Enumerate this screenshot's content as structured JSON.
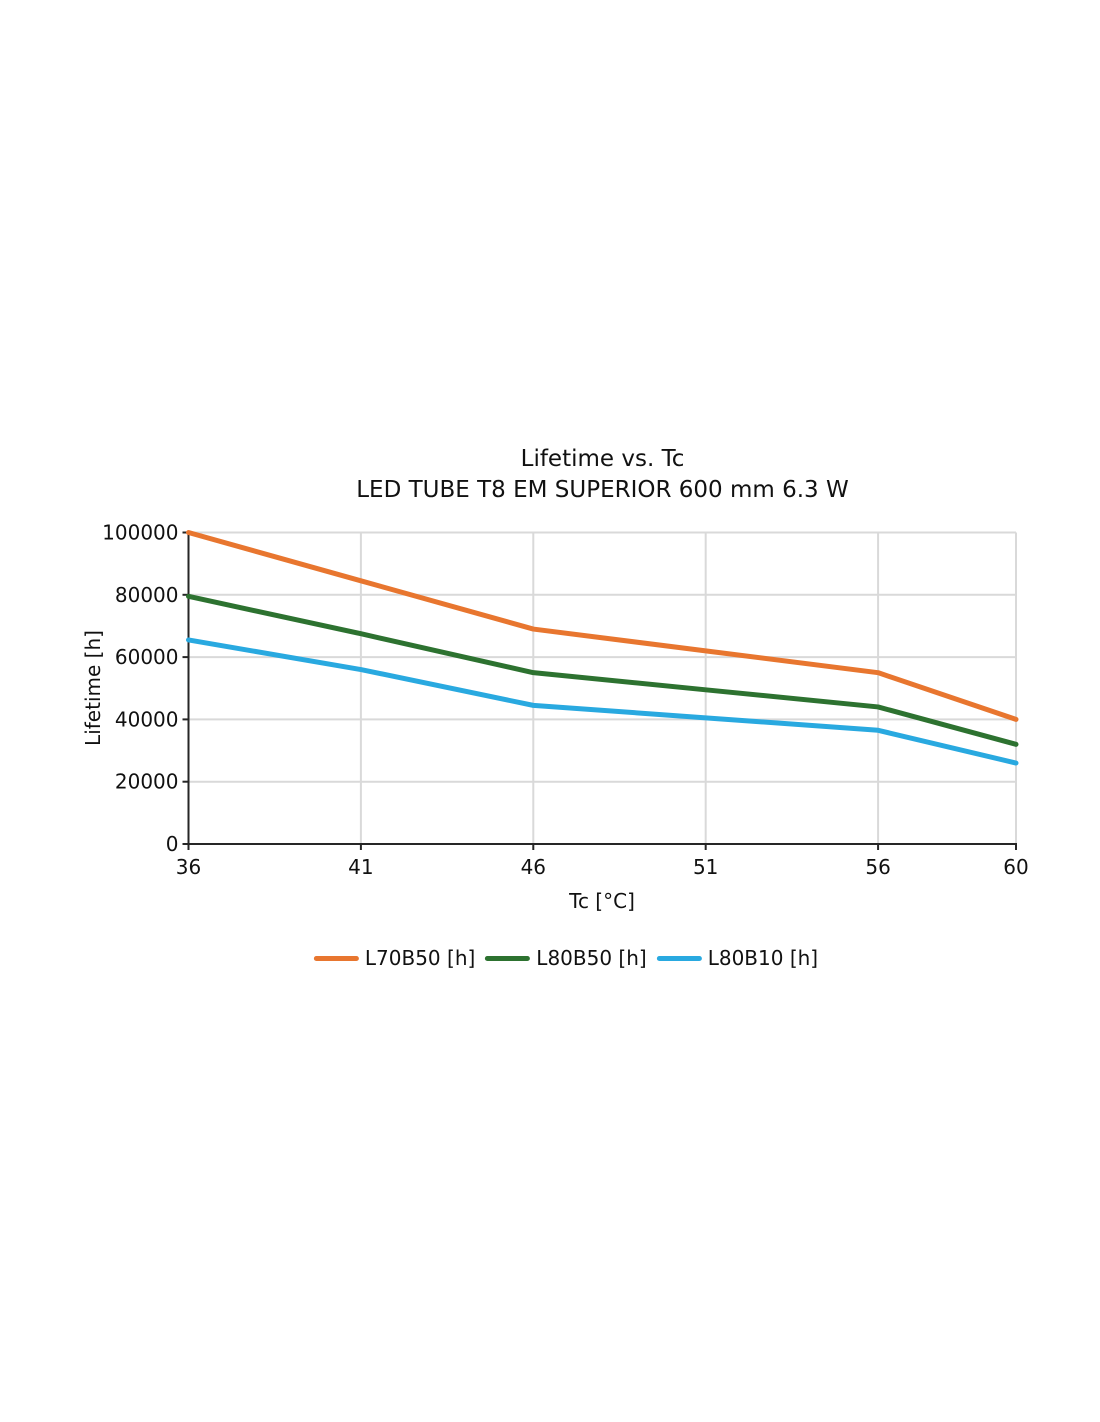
{
  "page": {
    "background": "#ffffff"
  },
  "chart_data": {
    "type": "line",
    "title": "Lifetime vs. Tc",
    "subtitle": "LED TUBE T8 EM SUPERIOR 600 mm 6.3 W",
    "xlabel": "Tc [°C]",
    "ylabel": "Lifetime [h]",
    "x": [
      36,
      41,
      46,
      51,
      56,
      60
    ],
    "x_ticks": [
      36,
      41,
      46,
      51,
      56,
      60
    ],
    "y_ticks": [
      0,
      20000,
      40000,
      60000,
      80000,
      100000
    ],
    "xlim": [
      36,
      60
    ],
    "ylim": [
      0,
      100000
    ],
    "grid": true,
    "legend_position": "bottom",
    "series": [
      {
        "name": "L70B50 [h]",
        "color": "#e8762f",
        "values": [
          100000,
          84500,
          69000,
          62000,
          55000,
          40000
        ]
      },
      {
        "name": "L80B50 [h]",
        "color": "#2d7230",
        "values": [
          79500,
          67500,
          55000,
          49500,
          44000,
          32000
        ]
      },
      {
        "name": "L80B10 [h]",
        "color": "#29a9e0",
        "values": [
          65500,
          56000,
          44500,
          40500,
          36500,
          26000
        ]
      }
    ],
    "style": {
      "grid_color": "#d9d9d9",
      "spine_color": "#262626",
      "text_color": "#111111",
      "line_width": 5
    }
  }
}
